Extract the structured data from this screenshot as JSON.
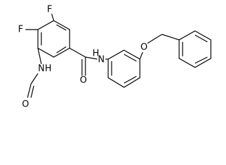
{
  "atoms": [
    {
      "label": "F"
    },
    {
      "label": "F"
    },
    {
      "label": "N"
    },
    {
      "label": "H"
    },
    {
      "label": "O"
    },
    {
      "label": "N"
    },
    {
      "label": "H"
    },
    {
      "label": "O"
    },
    {
      "label": "O"
    }
  ]
}
